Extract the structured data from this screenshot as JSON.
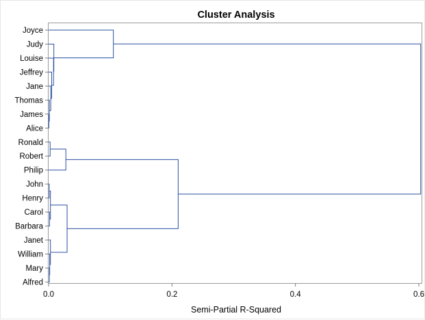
{
  "chart_data": {
    "type": "dendrogram",
    "title": "Cluster Analysis",
    "xlabel": "Semi-Partial R-Squared",
    "xlim": [
      0,
      0.6
    ],
    "xticks": [
      "0.0",
      "0.2",
      "0.4",
      "0.6"
    ],
    "xtick_values": [
      0,
      0.2,
      0.4,
      0.6
    ],
    "orientation": "horizontal",
    "line_color": "#2a4fa0",
    "leaves": [
      "Joyce",
      "Judy",
      "Louise",
      "Jeffrey",
      "Jane",
      "Thomas",
      "James",
      "Alice",
      "Ronald",
      "Robert",
      "Philip",
      "John",
      "Henry",
      "Carol",
      "Barbara",
      "Janet",
      "William",
      "Mary",
      "Alfred"
    ],
    "merges": [
      {
        "id": "A",
        "children": [
          "James",
          "Alice"
        ],
        "height": 0.0005
      },
      {
        "id": "B",
        "children": [
          "Thomas",
          "A"
        ],
        "height": 0.0012
      },
      {
        "id": "C",
        "children": [
          "Jane",
          "B"
        ],
        "height": 0.0035
      },
      {
        "id": "D",
        "children": [
          "Jeffrey",
          "C"
        ],
        "height": 0.005
      },
      {
        "id": "E",
        "children": [
          "Louise",
          "D"
        ],
        "height": 0.008
      },
      {
        "id": "F",
        "children": [
          "Judy",
          "E"
        ],
        "height": 0.0085
      },
      {
        "id": "G",
        "children": [
          "Joyce",
          "F"
        ],
        "height": 0.105
      },
      {
        "id": "H",
        "children": [
          "Ronald",
          "Robert"
        ],
        "height": 0.0025
      },
      {
        "id": "I",
        "children": [
          "H",
          "Philip"
        ],
        "height": 0.028
      },
      {
        "id": "J",
        "children": [
          "John",
          "Henry"
        ],
        "height": 0.001
      },
      {
        "id": "K",
        "children": [
          "Carol",
          "Barbara"
        ],
        "height": 0.0015
      },
      {
        "id": "L",
        "children": [
          "J",
          "K"
        ],
        "height": 0.003
      },
      {
        "id": "M",
        "children": [
          "Mary",
          "Alfred"
        ],
        "height": 0.0012
      },
      {
        "id": "N",
        "children": [
          "William",
          "M"
        ],
        "height": 0.0018
      },
      {
        "id": "O",
        "children": [
          "Janet",
          "N"
        ],
        "height": 0.003
      },
      {
        "id": "P",
        "children": [
          "L",
          "O"
        ],
        "height": 0.03
      },
      {
        "id": "Q",
        "children": [
          "I",
          "P"
        ],
        "height": 0.21
      },
      {
        "id": "R",
        "children": [
          "G",
          "Q"
        ],
        "height": 0.603
      }
    ]
  }
}
